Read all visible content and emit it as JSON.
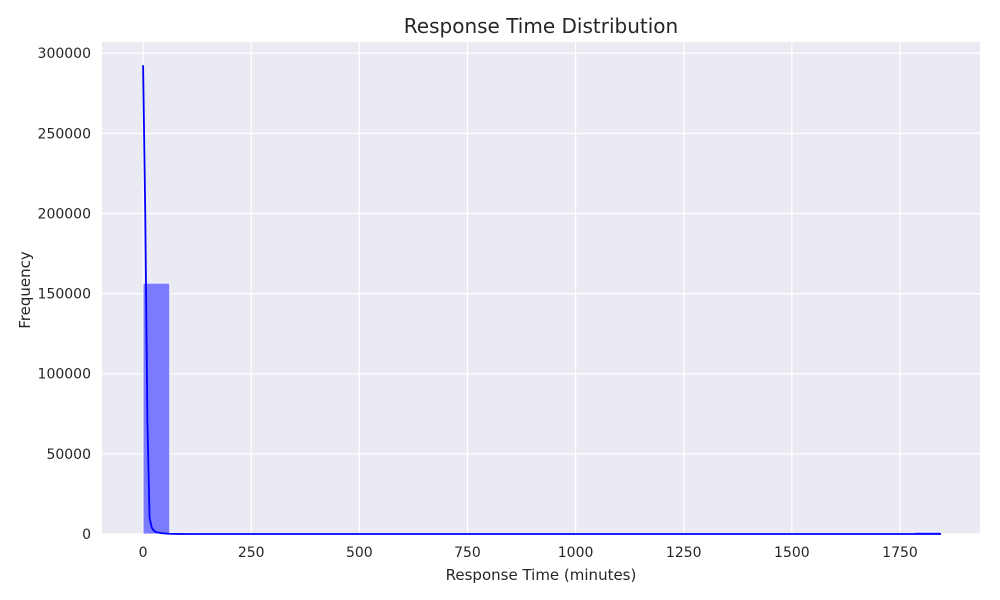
{
  "chart_data": {
    "type": "bar",
    "title": "Response Time Distribution",
    "xlabel": "Response Time (minutes)",
    "ylabel": "Frequency",
    "xlim": [
      -95,
      1935
    ],
    "ylim": [
      0,
      307000
    ],
    "x_ticks": [
      0,
      250,
      500,
      750,
      1000,
      1250,
      1500,
      1750
    ],
    "y_ticks": [
      0,
      50000,
      100000,
      150000,
      200000,
      250000,
      300000
    ],
    "grid": true,
    "background_color": "#eaeaf2",
    "grid_color": "#ffffff",
    "bar_color": "#7b7bff",
    "line_color": "#0000ff",
    "histogram": {
      "bin_width": 61.5,
      "bin_starts": [
        0,
        61.5,
        123,
        184.5,
        246,
        307.5,
        369,
        430.5,
        492,
        553.5,
        615,
        676.5,
        738,
        799.5,
        861,
        922.5,
        984,
        1045.5,
        1107,
        1168.5,
        1230,
        1291.5,
        1353,
        1414.5,
        1476,
        1537.5,
        1599,
        1660.5,
        1722,
        1783.5
      ],
      "counts": [
        156500,
        700,
        120,
        60,
        40,
        30,
        25,
        20,
        15,
        12,
        10,
        9,
        8,
        7,
        6,
        6,
        5,
        5,
        4,
        4,
        4,
        3,
        3,
        3,
        2,
        2,
        2,
        2,
        2,
        1200
      ]
    },
    "kde": {
      "x": [
        0,
        5,
        10,
        15,
        20,
        25,
        30,
        40,
        50,
        60,
        80,
        100,
        150,
        200,
        300,
        500,
        800,
        1200,
        1600,
        1845
      ],
      "y": [
        292500,
        200000,
        70000,
        10000,
        4000,
        2000,
        1200,
        600,
        300,
        150,
        50,
        20,
        5,
        2,
        0,
        0,
        0,
        0,
        0,
        0
      ]
    }
  }
}
